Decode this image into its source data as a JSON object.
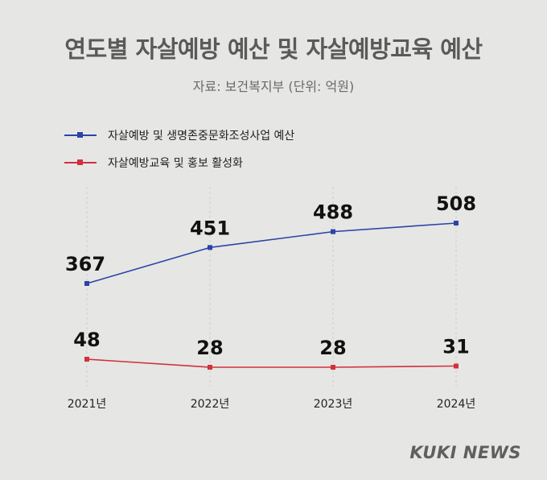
{
  "title": "연도별 자살예방 예산 및 자살예방교육 예산",
  "subtitle": "자료: 보건복지부 (단위: 억원)",
  "brand": "KUKI NEWS",
  "chart_data": {
    "type": "line",
    "categories": [
      "2021년",
      "2022년",
      "2023년",
      "2024년"
    ],
    "series": [
      {
        "name": "자살예방 및 생명존중문화조성사업 예산",
        "color": "#2b44a8",
        "values": [
          367,
          451,
          488,
          508
        ]
      },
      {
        "name": "자살예방교육 및 홍보 활성화",
        "color": "#d1303b",
        "values": [
          48,
          28,
          28,
          31
        ]
      }
    ],
    "grid": "vertical dashed lines at categories",
    "legend": "top-left"
  }
}
